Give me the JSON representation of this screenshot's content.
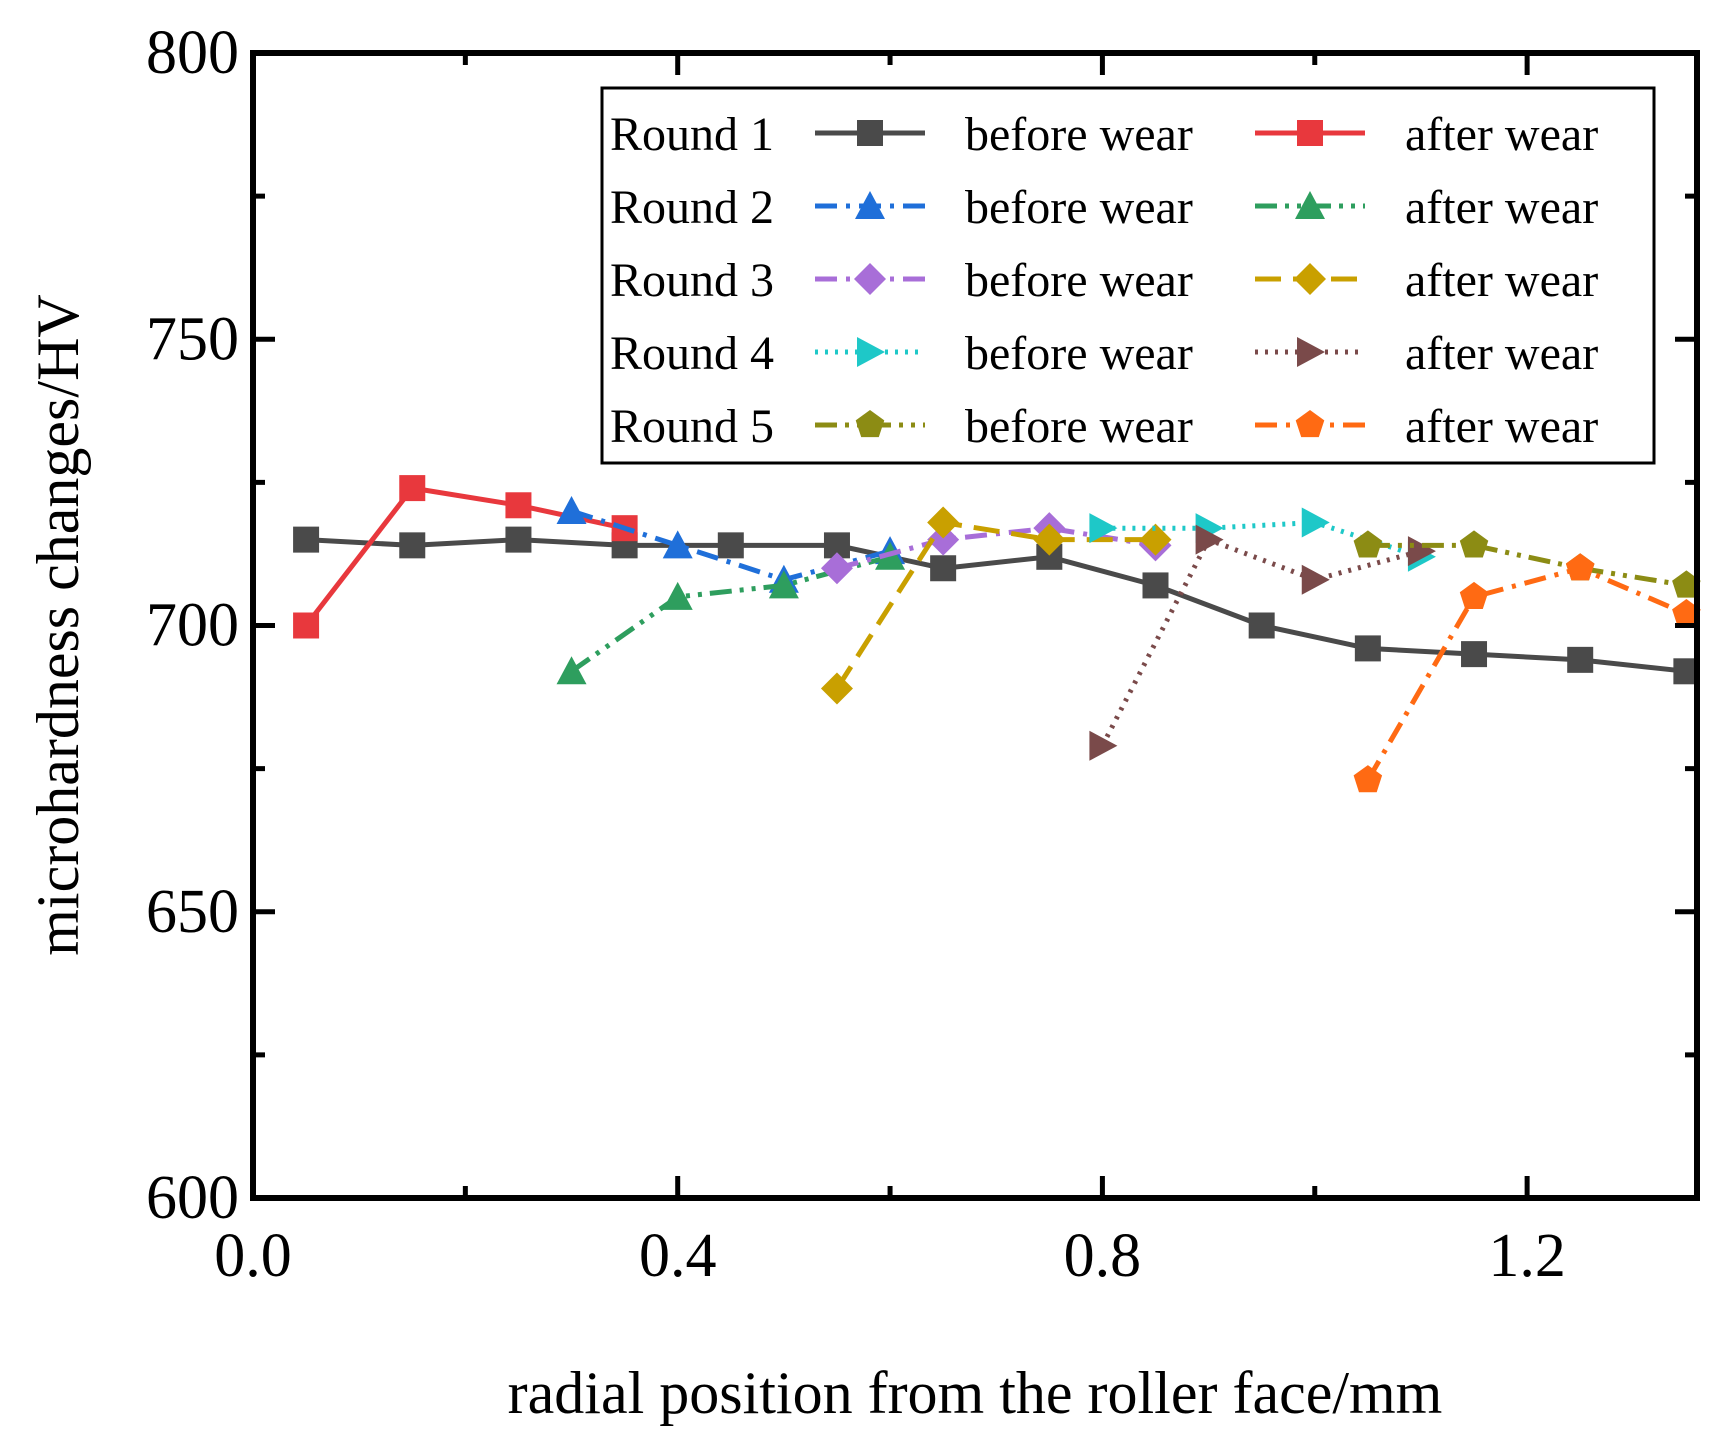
{
  "chart_data": {
    "type": "line",
    "xlabel": "radial position from the roller face/mm",
    "ylabel": "microhardness changes/HV",
    "xlim": [
      0.0,
      1.36
    ],
    "ylim": [
      600,
      800
    ],
    "xticks": [
      {
        "value": 0.0,
        "label": "0.0"
      },
      {
        "value": 0.4,
        "label": "0.4"
      },
      {
        "value": 0.8,
        "label": "0.8"
      },
      {
        "value": 1.2,
        "label": "1.2"
      }
    ],
    "yticks": [
      {
        "value": 600,
        "label": "600"
      },
      {
        "value": 650,
        "label": "650"
      },
      {
        "value": 700,
        "label": "700"
      },
      {
        "value": 750,
        "label": "750"
      },
      {
        "value": 800,
        "label": "800"
      }
    ],
    "legend_position": "top-right",
    "legend_rows": [
      "Round 1",
      "Round 2",
      "Round 3",
      "Round 4",
      "Round 5"
    ],
    "series": [
      {
        "name": "Round 1 before wear",
        "round": "Round 1",
        "label": "before wear",
        "color": "#4a4a4a",
        "dash": "solid",
        "marker": "square",
        "x": [
          0.05,
          0.15,
          0.25,
          0.35,
          0.45,
          0.55,
          0.65,
          0.75,
          0.85,
          0.95,
          1.05,
          1.15,
          1.25,
          1.35
        ],
        "y": [
          715,
          714,
          715,
          714,
          714,
          714,
          710,
          712,
          707,
          700,
          696,
          695,
          694,
          692
        ]
      },
      {
        "name": "Round 1 after wear",
        "round": "Round 1",
        "label": "after wear",
        "color": "#e8383d",
        "dash": "solid",
        "marker": "square",
        "x": [
          0.05,
          0.15,
          0.25,
          0.35
        ],
        "y": [
          700,
          724,
          721,
          717
        ]
      },
      {
        "name": "Round 2 before wear",
        "round": "Round 2",
        "label": "before wear",
        "color": "#1f6fd9",
        "dash": "dashdot",
        "marker": "triangle-up",
        "x": [
          0.3,
          0.4,
          0.5,
          0.6
        ],
        "y": [
          720,
          714,
          708,
          713
        ]
      },
      {
        "name": "Round 2 after wear",
        "round": "Round 2",
        "label": "after wear",
        "color": "#2e9e5e",
        "dash": "dashdotdot",
        "marker": "triangle-up",
        "x": [
          0.3,
          0.4,
          0.5,
          0.6
        ],
        "y": [
          692,
          705,
          707,
          712
        ]
      },
      {
        "name": "Round 3 before wear",
        "round": "Round 3",
        "label": "before wear",
        "color": "#a86ed8",
        "dash": "dashdot",
        "marker": "diamond",
        "x": [
          0.55,
          0.65,
          0.75,
          0.85
        ],
        "y": [
          710,
          715,
          717,
          714
        ]
      },
      {
        "name": "Round 3 after wear",
        "round": "Round 3",
        "label": "after wear",
        "color": "#c9a000",
        "dash": "dash",
        "marker": "diamond",
        "x": [
          0.55,
          0.65,
          0.75,
          0.85
        ],
        "y": [
          689,
          718,
          715,
          715
        ]
      },
      {
        "name": "Round 4 before wear",
        "round": "Round 4",
        "label": "before wear",
        "color": "#1ec8c8",
        "dash": "dot",
        "marker": "triangle-right",
        "x": [
          0.8,
          0.9,
          1.0,
          1.1
        ],
        "y": [
          717,
          717,
          718,
          712
        ]
      },
      {
        "name": "Round 4 after wear",
        "round": "Round 4",
        "label": "after wear",
        "color": "#7a4a4a",
        "dash": "dot",
        "marker": "triangle-right",
        "x": [
          0.8,
          0.9,
          1.0,
          1.1
        ],
        "y": [
          679,
          715,
          708,
          713
        ]
      },
      {
        "name": "Round 5 before wear",
        "round": "Round 5",
        "label": "before wear",
        "color": "#8c8c14",
        "dash": "dashdotdot",
        "marker": "pentagon",
        "x": [
          1.05,
          1.15,
          1.25,
          1.35
        ],
        "y": [
          714,
          714,
          710,
          707
        ]
      },
      {
        "name": "Round 5 after wear",
        "round": "Round 5",
        "label": "after wear",
        "color": "#ff6a13",
        "dash": "dashdot",
        "marker": "pentagon",
        "x": [
          1.05,
          1.15,
          1.25,
          1.35
        ],
        "y": [
          673,
          705,
          710,
          702
        ]
      }
    ]
  }
}
